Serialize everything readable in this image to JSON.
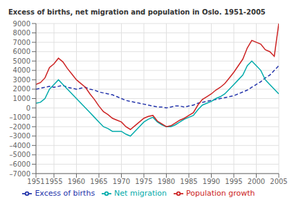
{
  "chart_data": {
    "type": "line",
    "title": "Excess of births, net migration and population in Oslo. 1951-2005",
    "x": [
      1951,
      1952,
      1953,
      1954,
      1955,
      1956,
      1957,
      1958,
      1959,
      1960,
      1961,
      1962,
      1963,
      1964,
      1965,
      1966,
      1967,
      1968,
      1969,
      1970,
      1971,
      1972,
      1973,
      1974,
      1975,
      1976,
      1977,
      1978,
      1979,
      1980,
      1981,
      1982,
      1983,
      1984,
      1985,
      1986,
      1987,
      1988,
      1989,
      1990,
      1991,
      1992,
      1993,
      1994,
      1995,
      1996,
      1997,
      1998,
      1999,
      2000,
      2001,
      2002,
      2003,
      2004,
      2005
    ],
    "xlim": [
      1951,
      2005
    ],
    "xticks": [
      1951,
      1955,
      1960,
      1965,
      1970,
      1975,
      1980,
      1985,
      1990,
      1995,
      2000,
      2005
    ],
    "ylim": [
      -7000,
      9000
    ],
    "yticks": [
      {
        "value": -7000,
        "label": "–7000"
      },
      {
        "value": -6000,
        "label": "–6000"
      },
      {
        "value": -5000,
        "label": "–5000"
      },
      {
        "value": -4000,
        "label": "–4000"
      },
      {
        "value": -3000,
        "label": "–3000"
      },
      {
        "value": -2000,
        "label": "–2000"
      },
      {
        "value": -1000,
        "label": "–1000"
      },
      0,
      1000,
      2000,
      3000,
      4000,
      5000,
      6000,
      7000,
      8000,
      9000
    ],
    "grid": true,
    "legend": "bottom",
    "series": [
      {
        "name": "Excess of births",
        "color": "#2233aa",
        "line_style": "dashed",
        "values": [
          2000,
          2100,
          2200,
          2300,
          2200,
          2300,
          2400,
          2200,
          2100,
          2000,
          2100,
          2200,
          2000,
          1900,
          1700,
          1600,
          1500,
          1400,
          1200,
          1000,
          800,
          700,
          600,
          500,
          400,
          300,
          200,
          100,
          100,
          0,
          100,
          200,
          200,
          100,
          200,
          300,
          500,
          600,
          700,
          800,
          900,
          1000,
          1100,
          1200,
          1300,
          1500,
          1700,
          1900,
          2200,
          2500,
          2800,
          3200,
          3500,
          4000,
          4500
        ]
      },
      {
        "name": "Net migration",
        "color": "#00aaaa",
        "line_style": "solid",
        "values": [
          500,
          600,
          1000,
          2000,
          2500,
          3000,
          2500,
          2000,
          1500,
          1000,
          500,
          0,
          -500,
          -1000,
          -1500,
          -2000,
          -2200,
          -2500,
          -2500,
          -2500,
          -2800,
          -3000,
          -2500,
          -2000,
          -1500,
          -1200,
          -1000,
          -1500,
          -1800,
          -2000,
          -2000,
          -1800,
          -1500,
          -1200,
          -1000,
          -800,
          -200,
          300,
          500,
          700,
          1000,
          1200,
          1500,
          2000,
          2500,
          3000,
          3500,
          4500,
          5000,
          4500,
          4000,
          3000,
          2500,
          2000,
          1500
        ]
      },
      {
        "name": "Population growth",
        "color": "#cc2222",
        "line_style": "solid",
        "values": [
          2500,
          2700,
          3200,
          4300,
          4700,
          5300,
          4900,
          4200,
          3600,
          3000,
          2600,
          2200,
          1500,
          900,
          200,
          -400,
          -700,
          -1100,
          -1300,
          -1500,
          -2000,
          -2300,
          -1900,
          -1500,
          -1100,
          -900,
          -800,
          -1400,
          -1700,
          -2000,
          -1900,
          -1600,
          -1300,
          -1100,
          -800,
          -500,
          300,
          900,
          1200,
          1500,
          1900,
          2200,
          2600,
          3200,
          3800,
          4500,
          5200,
          6400,
          7200,
          7000,
          6800,
          6200,
          6000,
          5500,
          9000
        ]
      }
    ]
  }
}
